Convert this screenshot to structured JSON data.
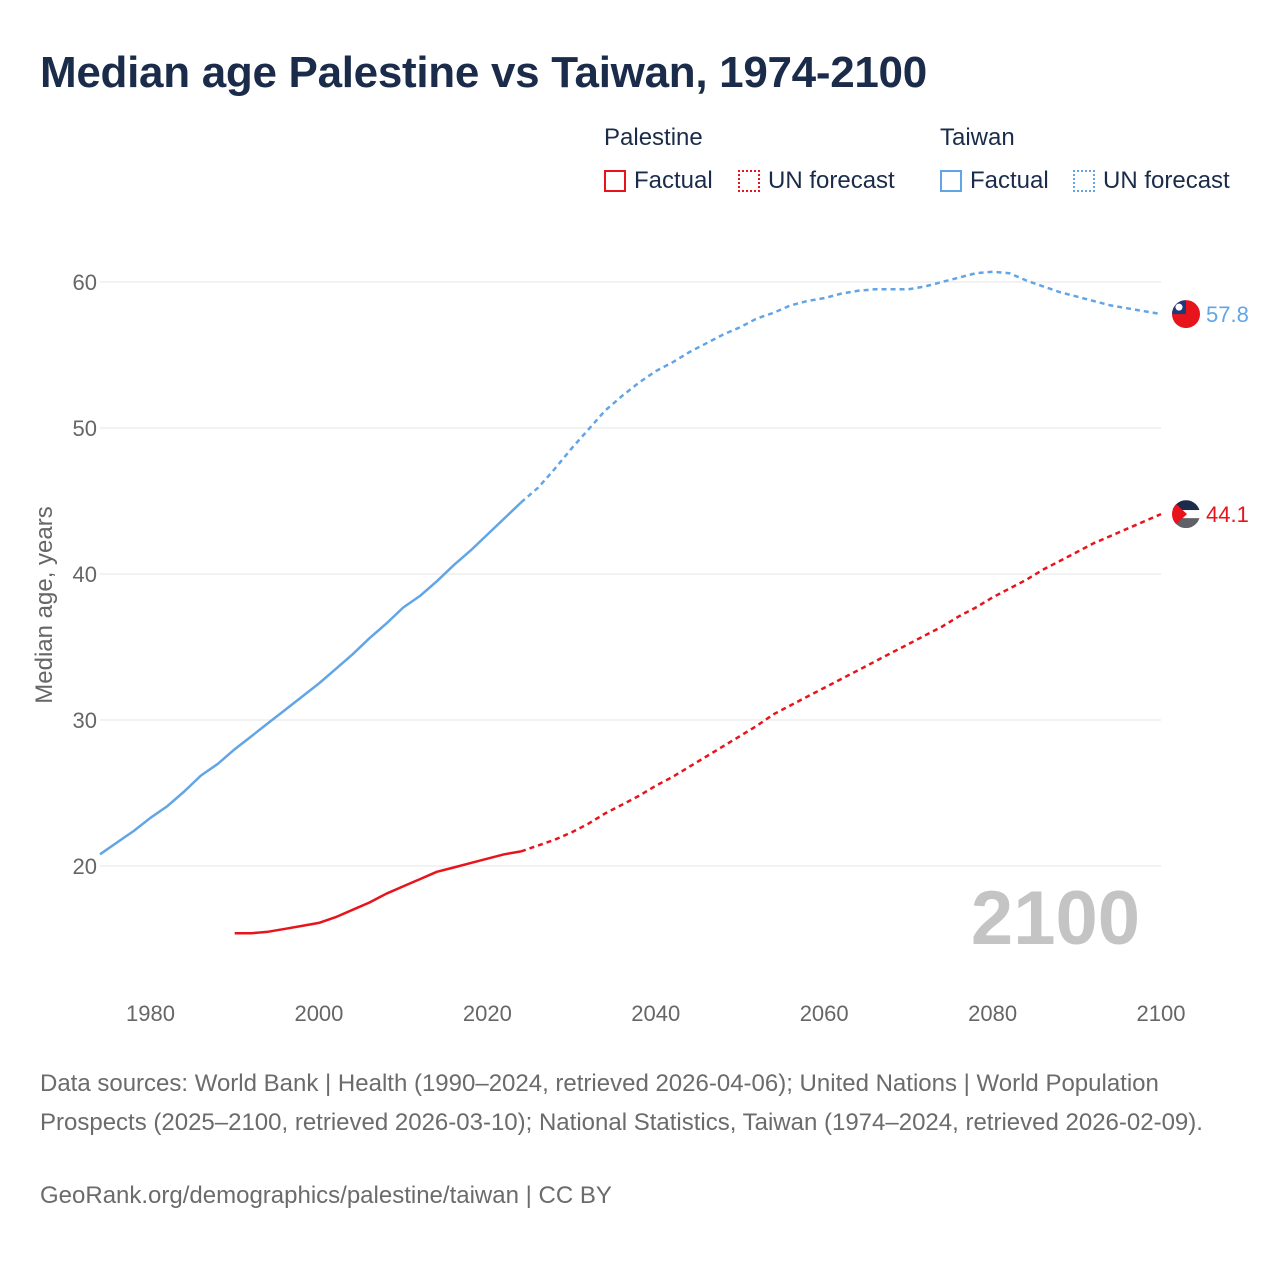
{
  "title": "Median age Palestine vs Taiwan, 1974-2100",
  "legend": {
    "palestine": {
      "name": "Palestine",
      "factual_label": "Factual",
      "forecast_label": "UN forecast",
      "color": "#e8141c"
    },
    "taiwan": {
      "name": "Taiwan",
      "factual_label": "Factual",
      "forecast_label": "UN forecast",
      "color": "#62a5e6"
    }
  },
  "year_watermark": "2100",
  "footer": {
    "sources": "Data sources: World Bank | Health (1990–2024, retrieved 2026-04-06); United Nations | World Population Prospects (2025–2100, retrieved 2026-03-10); National Statistics, Taiwan (1974–2024, retrieved 2026-02-09).",
    "credit": "GeoRank.org/demographics/palestine/taiwan | CC BY"
  },
  "chart_data": {
    "type": "line",
    "title": "Median age Palestine vs Taiwan, 1974-2100",
    "xlabel": "",
    "ylabel": "Median age, years",
    "xlim": [
      1974,
      2100
    ],
    "ylim": [
      13,
      64
    ],
    "xticks": [
      1980,
      2000,
      2020,
      2040,
      2060,
      2080,
      2100
    ],
    "yticks": [
      20,
      30,
      40,
      50,
      60
    ],
    "grid": true,
    "series": [
      {
        "name": "Taiwan",
        "color": "#62a5e6",
        "end_label": "57.8",
        "factual": {
          "x": [
            1974,
            1976,
            1978,
            1980,
            1982,
            1984,
            1986,
            1988,
            1990,
            1992,
            1994,
            1996,
            1998,
            2000,
            2002,
            2004,
            2006,
            2008,
            2010,
            2012,
            2014,
            2016,
            2018,
            2020,
            2022,
            2024
          ],
          "y": [
            20.8,
            21.6,
            22.4,
            23.3,
            24.1,
            25.1,
            26.2,
            27.0,
            28.0,
            28.9,
            29.8,
            30.7,
            31.6,
            32.5,
            33.5,
            34.5,
            35.6,
            36.6,
            37.7,
            38.5,
            39.5,
            40.6,
            41.6,
            42.7,
            43.8,
            44.9
          ]
        },
        "forecast": {
          "x": [
            2024,
            2026,
            2028,
            2030,
            2032,
            2034,
            2036,
            2038,
            2040,
            2042,
            2044,
            2046,
            2048,
            2050,
            2052,
            2054,
            2056,
            2058,
            2060,
            2062,
            2064,
            2066,
            2068,
            2070,
            2072,
            2074,
            2076,
            2078,
            2080,
            2082,
            2084,
            2086,
            2088,
            2090,
            2092,
            2094,
            2096,
            2098,
            2100
          ],
          "y": [
            44.9,
            45.9,
            47.2,
            48.6,
            49.9,
            51.2,
            52.2,
            53.1,
            53.9,
            54.5,
            55.2,
            55.8,
            56.4,
            56.9,
            57.5,
            57.9,
            58.4,
            58.7,
            58.9,
            59.2,
            59.4,
            59.5,
            59.5,
            59.5,
            59.7,
            60.0,
            60.3,
            60.6,
            60.7,
            60.6,
            60.1,
            59.7,
            59.3,
            59.0,
            58.7,
            58.4,
            58.2,
            58.0,
            57.8
          ]
        }
      },
      {
        "name": "Palestine",
        "color": "#e8141c",
        "end_label": "44.1",
        "factual": {
          "x": [
            1990,
            1992,
            1994,
            1996,
            1998,
            2000,
            2002,
            2004,
            2006,
            2008,
            2010,
            2012,
            2014,
            2016,
            2018,
            2020,
            2022,
            2024
          ],
          "y": [
            15.4,
            15.4,
            15.5,
            15.7,
            15.9,
            16.1,
            16.5,
            17.0,
            17.5,
            18.1,
            18.6,
            19.1,
            19.6,
            19.9,
            20.2,
            20.5,
            20.8,
            21.0
          ]
        },
        "forecast": {
          "x": [
            2024,
            2026,
            2028,
            2030,
            2032,
            2034,
            2036,
            2038,
            2040,
            2042,
            2044,
            2046,
            2048,
            2050,
            2052,
            2054,
            2056,
            2058,
            2060,
            2062,
            2064,
            2066,
            2068,
            2070,
            2072,
            2074,
            2076,
            2078,
            2080,
            2082,
            2084,
            2086,
            2088,
            2090,
            2092,
            2094,
            2096,
            2098,
            2100
          ],
          "y": [
            21.0,
            21.4,
            21.8,
            22.3,
            22.9,
            23.6,
            24.2,
            24.8,
            25.5,
            26.1,
            26.8,
            27.5,
            28.2,
            28.9,
            29.6,
            30.4,
            31.0,
            31.6,
            32.2,
            32.8,
            33.4,
            34.0,
            34.6,
            35.2,
            35.8,
            36.4,
            37.1,
            37.7,
            38.4,
            39.0,
            39.6,
            40.3,
            40.9,
            41.5,
            42.1,
            42.6,
            43.1,
            43.6,
            44.1
          ]
        }
      }
    ]
  }
}
